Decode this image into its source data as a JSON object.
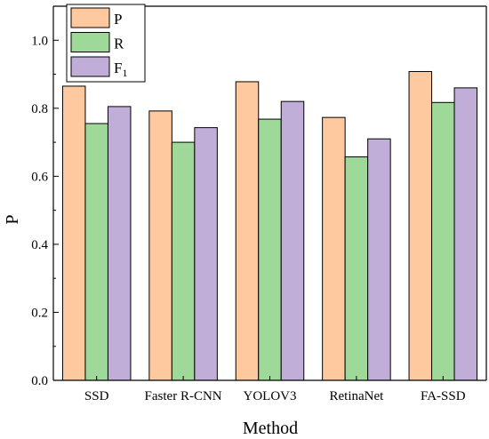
{
  "chart_data": {
    "type": "bar",
    "title": "",
    "xlabel": "Method",
    "ylabel": "P",
    "ylim": [
      0,
      1.1
    ],
    "yticks": [
      0.0,
      0.2,
      0.4,
      0.6,
      0.8,
      1.0
    ],
    "ytick_labels": [
      "0.0",
      "0.2",
      "0.4",
      "0.6",
      "0.8",
      "1.0"
    ],
    "grid": false,
    "legend_position": "top-left",
    "categories": [
      "SSD",
      "Faster R-CNN",
      "YOLOV3",
      "RetinaNet",
      "FA-SSD"
    ],
    "series": [
      {
        "name": "P",
        "color": "#FFC99F",
        "values": [
          0.865,
          0.792,
          0.878,
          0.773,
          0.908
        ]
      },
      {
        "name": "R",
        "color": "#9ED99A",
        "values": [
          0.755,
          0.7,
          0.768,
          0.657,
          0.817
        ]
      },
      {
        "name": "F",
        "name_subscript": "1",
        "color": "#C0AED9",
        "values": [
          0.805,
          0.743,
          0.82,
          0.71,
          0.86
        ]
      }
    ]
  }
}
